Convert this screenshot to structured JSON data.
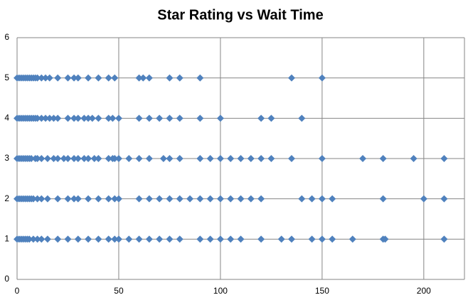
{
  "chart_data": {
    "type": "scatter",
    "title": "Star Rating vs Wait Time",
    "series": [
      {
        "color": "#4f81bd",
        "x": [
          0,
          1,
          2,
          3,
          4,
          5,
          6,
          7,
          8,
          9,
          10,
          12,
          14,
          16,
          20,
          25,
          28,
          30,
          35,
          40,
          45,
          48,
          60,
          62,
          65,
          75,
          80,
          90,
          135,
          150
        ],
        "values": [
          5,
          5,
          5,
          5,
          5,
          5,
          5,
          5,
          5,
          5,
          5,
          5,
          5,
          5,
          5,
          5,
          5,
          5,
          5,
          5,
          5,
          5,
          5,
          5,
          5,
          5,
          5,
          5,
          5,
          5
        ]
      },
      {
        "color": "#4f81bd",
        "x": [
          0,
          1,
          2,
          3,
          4,
          5,
          6,
          7,
          8,
          9,
          10,
          12,
          14,
          16,
          18,
          20,
          25,
          28,
          30,
          33,
          35,
          37,
          40,
          45,
          47,
          50,
          60,
          65,
          70,
          75,
          80,
          90,
          100,
          120,
          125,
          140
        ],
        "values": [
          4,
          4,
          4,
          4,
          4,
          4,
          4,
          4,
          4,
          4,
          4,
          4,
          4,
          4,
          4,
          4,
          4,
          4,
          4,
          4,
          4,
          4,
          4,
          4,
          4,
          4,
          4,
          4,
          4,
          4,
          4,
          4,
          4,
          4,
          4,
          4
        ]
      },
      {
        "color": "#4f81bd",
        "x": [
          0,
          1,
          2,
          3,
          4,
          5,
          6,
          7,
          9,
          10,
          12,
          15,
          18,
          20,
          23,
          25,
          28,
          30,
          33,
          35,
          38,
          40,
          45,
          47,
          48,
          50,
          55,
          60,
          65,
          72,
          75,
          80,
          90,
          95,
          100,
          105,
          110,
          115,
          120,
          125,
          135,
          150,
          170,
          180,
          195,
          210
        ],
        "values": [
          3,
          3,
          3,
          3,
          3,
          3,
          3,
          3,
          3,
          3,
          3,
          3,
          3,
          3,
          3,
          3,
          3,
          3,
          3,
          3,
          3,
          3,
          3,
          3,
          3,
          3,
          3,
          3,
          3,
          3,
          3,
          3,
          3,
          3,
          3,
          3,
          3,
          3,
          3,
          3,
          3,
          3,
          3,
          3,
          3,
          3
        ]
      },
      {
        "color": "#4f81bd",
        "x": [
          0,
          1,
          2,
          3,
          4,
          5,
          6,
          7,
          8,
          10,
          12,
          15,
          20,
          25,
          28,
          30,
          35,
          40,
          45,
          48,
          50,
          60,
          65,
          70,
          75,
          80,
          85,
          90,
          95,
          100,
          105,
          110,
          115,
          120,
          140,
          145,
          150,
          155,
          180,
          200,
          210
        ],
        "values": [
          2,
          2,
          2,
          2,
          2,
          2,
          2,
          2,
          2,
          2,
          2,
          2,
          2,
          2,
          2,
          2,
          2,
          2,
          2,
          2,
          2,
          2,
          2,
          2,
          2,
          2,
          2,
          2,
          2,
          2,
          2,
          2,
          2,
          2,
          2,
          2,
          2,
          2,
          2,
          2,
          2
        ]
      },
      {
        "color": "#4f81bd",
        "x": [
          0,
          1,
          2,
          3,
          4,
          5,
          6,
          8,
          10,
          12,
          15,
          20,
          25,
          30,
          35,
          40,
          45,
          48,
          50,
          55,
          60,
          65,
          70,
          75,
          80,
          90,
          95,
          100,
          105,
          110,
          120,
          130,
          135,
          145,
          150,
          155,
          165,
          180,
          181,
          210
        ],
        "values": [
          1,
          1,
          1,
          1,
          1,
          1,
          1,
          1,
          1,
          1,
          1,
          1,
          1,
          1,
          1,
          1,
          1,
          1,
          1,
          1,
          1,
          1,
          1,
          1,
          1,
          1,
          1,
          1,
          1,
          1,
          1,
          1,
          1,
          1,
          1,
          1,
          1,
          1,
          1,
          1
        ]
      }
    ],
    "xlim": [
      0,
      220
    ],
    "xticks": [
      0,
      50,
      100,
      150,
      200
    ],
    "ylim": [
      0,
      6
    ],
    "yticks": [
      0,
      1,
      2,
      3,
      4,
      5,
      6
    ],
    "grid": true
  }
}
